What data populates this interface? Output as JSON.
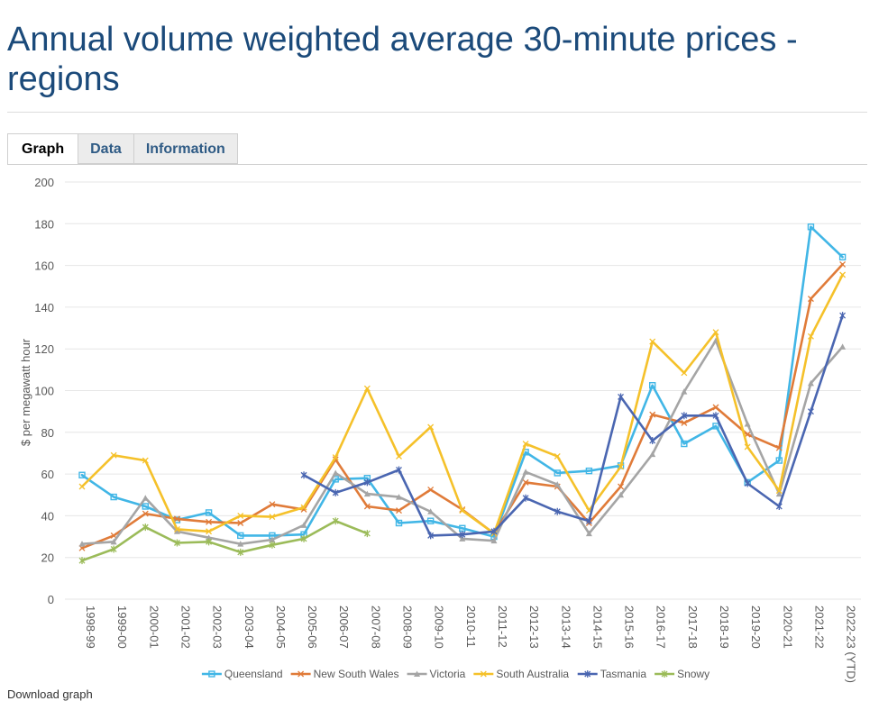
{
  "page": {
    "title": "Annual volume weighted average 30-minute prices - regions",
    "below_text": "Download graph"
  },
  "tabs": [
    {
      "label": "Graph",
      "active": true
    },
    {
      "label": "Data",
      "active": false
    },
    {
      "label": "Information",
      "active": false
    }
  ],
  "chart_data": {
    "type": "line",
    "title": "",
    "xlabel": "",
    "ylabel": "$ per megawatt hour",
    "ylim": [
      0,
      200
    ],
    "yticks": [
      0,
      20,
      40,
      60,
      80,
      100,
      120,
      140,
      160,
      180,
      200
    ],
    "grid": true,
    "legend_position": "bottom",
    "categories": [
      "1998-99",
      "1999-00",
      "2000-01",
      "2001-02",
      "2002-03",
      "2003-04",
      "2004-05",
      "2005-06",
      "2006-07",
      "2007-08",
      "2008-09",
      "2009-10",
      "2010-11",
      "2011-12",
      "2012-13",
      "2013-14",
      "2014-15",
      "2015-16",
      "2016-17",
      "2017-18",
      "2018-19",
      "2019-20",
      "2020-21",
      "2021-22",
      "2022-23 (YTD)"
    ],
    "series": [
      {
        "name": "Queensland",
        "color": "#41b6e6",
        "marker": "square",
        "values": [
          59.5,
          49,
          44.5,
          38,
          41.5,
          30.5,
          30.5,
          31,
          57.5,
          58,
          36.5,
          37.5,
          34,
          30,
          70.5,
          60.5,
          61.5,
          64,
          102.5,
          74.5,
          83,
          56,
          66.5,
          178.5,
          164
        ]
      },
      {
        "name": "New South Wales",
        "color": "#e07b39",
        "marker": "cross",
        "values": [
          24.5,
          30.5,
          41,
          38.5,
          37,
          36.5,
          45.5,
          43,
          67,
          44.5,
          42.5,
          52.5,
          43,
          31.5,
          56,
          54,
          36.5,
          54,
          88.5,
          84.5,
          92,
          79,
          72.5,
          144,
          160.5
        ]
      },
      {
        "name": "Victoria",
        "color": "#a5a5a5",
        "marker": "triangle",
        "values": [
          26.5,
          27.5,
          48.5,
          32.5,
          29.5,
          26.5,
          28.5,
          35.5,
          60.5,
          50.5,
          49,
          42,
          29,
          28,
          61,
          55,
          31.5,
          50,
          69.5,
          99.5,
          124,
          84,
          50.5,
          103.5,
          121
        ]
      },
      {
        "name": "South Australia",
        "color": "#f5c12a",
        "marker": "cross",
        "values": [
          54,
          69,
          66.5,
          33.5,
          32.5,
          40,
          39.5,
          44,
          68,
          101,
          68.5,
          82.5,
          42.5,
          31.5,
          74.5,
          68.5,
          42.5,
          63.5,
          123.5,
          108.5,
          128,
          73,
          52,
          126,
          155.5
        ]
      },
      {
        "name": "Tasmania",
        "color": "#4a66b1",
        "marker": "star",
        "values": [
          null,
          null,
          null,
          null,
          null,
          null,
          null,
          59.5,
          51,
          56,
          62,
          30.5,
          31,
          32.5,
          48.5,
          42,
          37.5,
          97,
          76,
          88,
          88,
          55.5,
          44.5,
          90,
          136
        ]
      },
      {
        "name": "Snowy",
        "color": "#9bbb59",
        "marker": "star",
        "values": [
          18.5,
          24,
          34.5,
          27,
          27.5,
          22.5,
          26,
          29,
          37.5,
          31.5,
          null,
          null,
          null,
          null,
          null,
          null,
          null,
          null,
          null,
          null,
          null,
          null,
          null,
          null,
          null
        ]
      }
    ]
  }
}
